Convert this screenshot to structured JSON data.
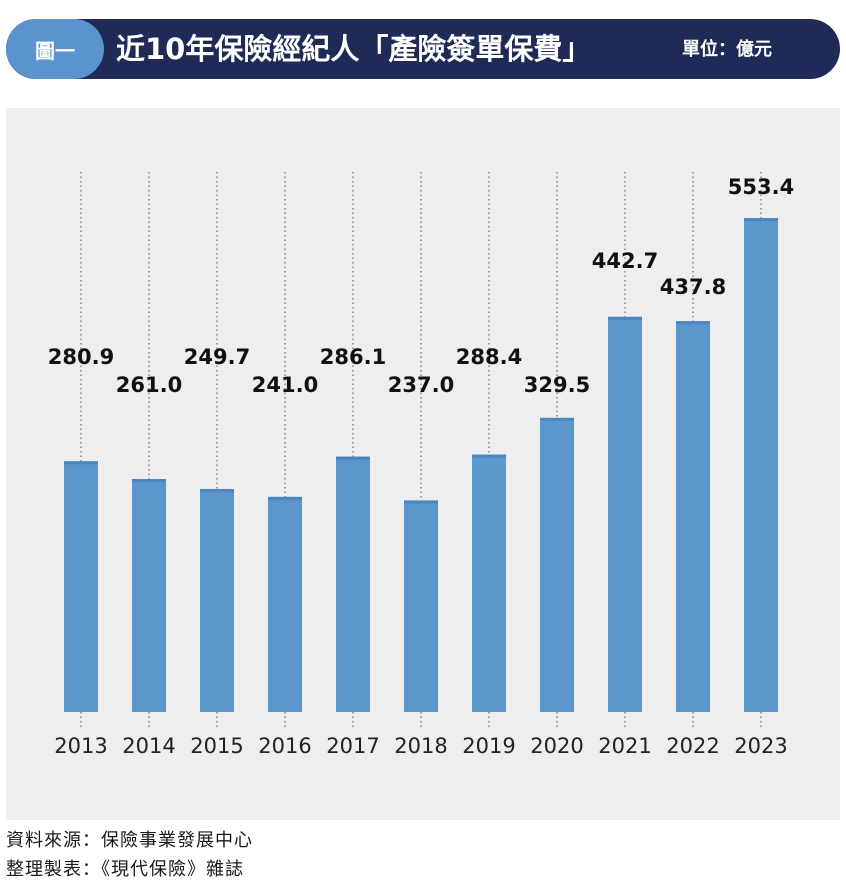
{
  "header": {
    "figure_label": "圖一",
    "title": "近10年保險經紀人「產險簽單保費」",
    "unit": "單位：億元"
  },
  "colors": {
    "header_bg": "#1f2a56",
    "pill": "#5a93ce",
    "bar": "#5b97cd",
    "plot_bg": "#eeeef1"
  },
  "chart_data": {
    "type": "bar",
    "categories": [
      "2013",
      "2014",
      "2015",
      "2016",
      "2017",
      "2018",
      "2019",
      "2020",
      "2021",
      "2022",
      "2023"
    ],
    "values": [
      280.9,
      261.0,
      249.7,
      241.0,
      286.1,
      237.0,
      288.4,
      329.5,
      442.7,
      437.8,
      553.4
    ],
    "value_labels": [
      "280.9",
      "261.0",
      "249.7",
      "241.0",
      "286.1",
      "237.0",
      "288.4",
      "329.5",
      "442.7",
      "437.8",
      "553.4"
    ],
    "ylim": [
      0,
      620
    ],
    "grid": "dotted vertical guide per bar",
    "legend": "none"
  },
  "footer": {
    "source": "資料來源：保險事業發展中心",
    "compiled": "整理製表：《現代保險》雜誌"
  }
}
